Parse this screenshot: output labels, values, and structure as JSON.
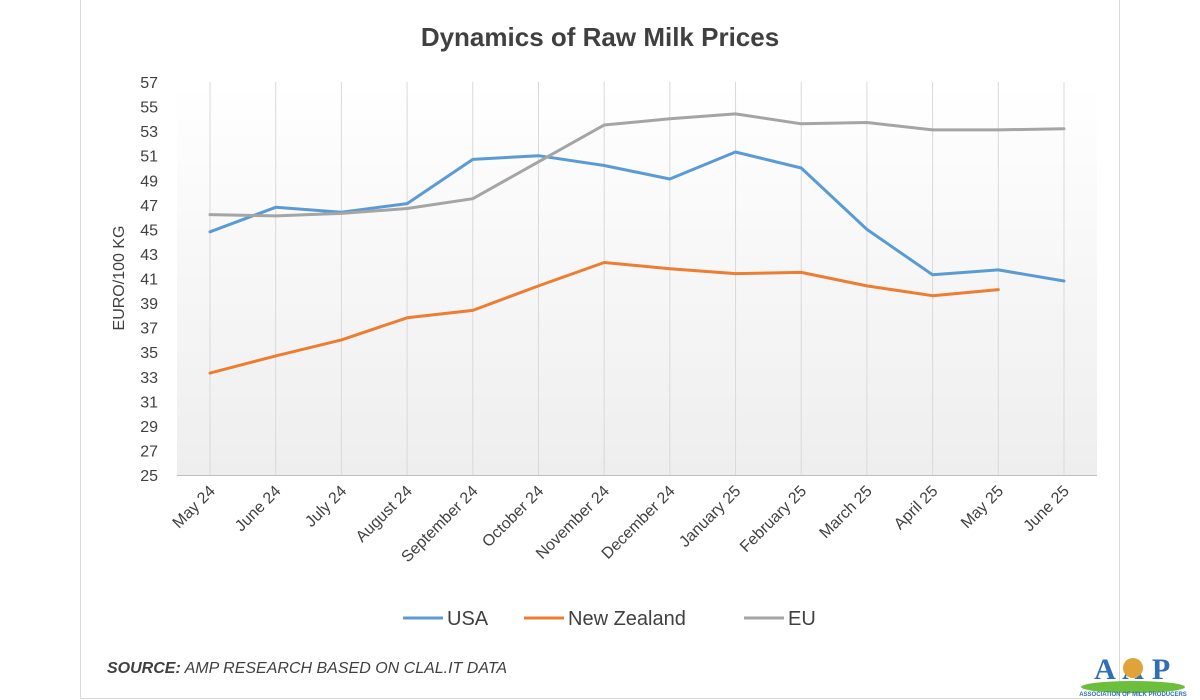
{
  "chart_data": {
    "type": "line",
    "title": "Dynamics of Raw Milk Prices",
    "ylabel": "EURO/100 KG",
    "xlabel": "",
    "ylim": [
      25,
      57
    ],
    "yticks": [
      "57",
      "55",
      "53",
      "51",
      "49",
      "47",
      "45",
      "43",
      "41",
      "39",
      "37",
      "35",
      "33",
      "31",
      "29",
      "27",
      "25"
    ],
    "categories": [
      "May 24",
      "June 24",
      "July 24",
      "August 24",
      "September 24",
      "October 24",
      "November 24",
      "December 24",
      "January 25",
      "February 25",
      "March 25",
      "April 25",
      "May 25",
      "June 25"
    ],
    "grid": "vertical",
    "legend": "bottom",
    "series": [
      {
        "name": "USA",
        "color": "#5b9bd5",
        "values": [
          44.8,
          46.8,
          46.4,
          47.1,
          50.7,
          51.0,
          50.2,
          49.1,
          51.3,
          50.0,
          45.0,
          41.3,
          41.7,
          40.8
        ]
      },
      {
        "name": "New Zealand",
        "color": "#ed7d31",
        "values": [
          33.3,
          34.7,
          36.0,
          37.8,
          38.4,
          40.4,
          42.3,
          41.8,
          41.4,
          41.5,
          40.4,
          39.6,
          40.1,
          null
        ]
      },
      {
        "name": "EU",
        "color": "#a5a5a5",
        "values": [
          46.2,
          46.1,
          46.3,
          46.7,
          47.5,
          50.5,
          53.5,
          54.0,
          54.4,
          53.6,
          53.7,
          53.1,
          53.1,
          53.2
        ]
      }
    ]
  },
  "source": {
    "prefix": "SOURCE:",
    "text": " AMP RESEARCH BASED ON CLAL.IT DATA"
  },
  "logo": {
    "text": "AMP",
    "subtext": "ASSOCIATION OF MILK PRODUCERS"
  }
}
